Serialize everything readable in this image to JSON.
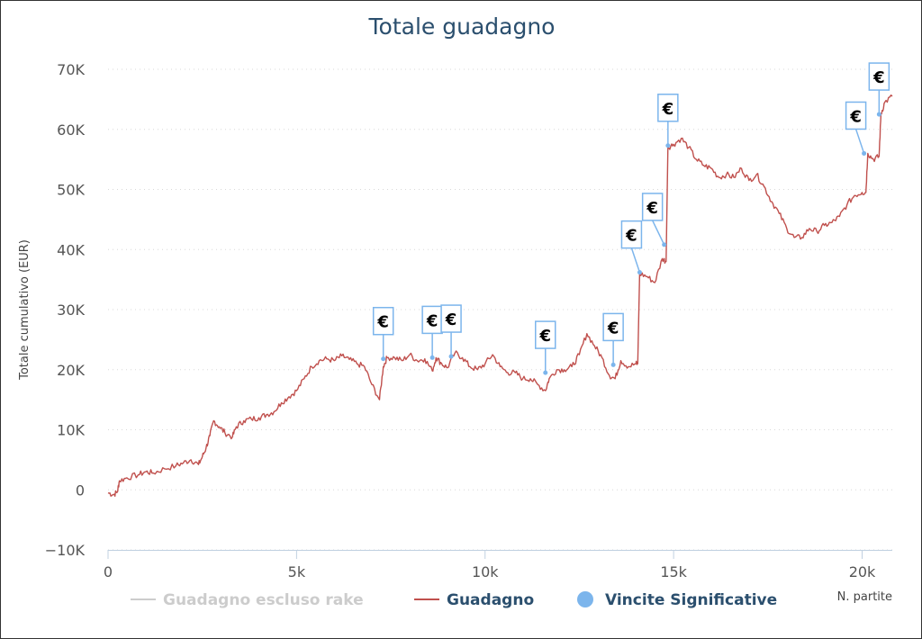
{
  "chart_data": {
    "type": "line",
    "title": "Totale guadagno",
    "xlabel": "N. partite",
    "ylabel": "Totale cumulativo (EUR)",
    "xlim": [
      0,
      20800
    ],
    "ylim": [
      -10000,
      70000
    ],
    "x_ticks": [
      0,
      5000,
      10000,
      15000,
      20000
    ],
    "x_tick_labels": [
      "0",
      "5k",
      "10k",
      "15k",
      "20k"
    ],
    "y_ticks": [
      -10000,
      0,
      10000,
      20000,
      30000,
      40000,
      50000,
      60000,
      70000
    ],
    "y_tick_labels": [
      "−10K",
      "0",
      "10K",
      "20K",
      "30K",
      "40K",
      "50K",
      "60K",
      "70K"
    ],
    "grid": true,
    "legend_position": "bottom",
    "colors": {
      "title": "#2b4f6e",
      "guadagno": "#c0504d",
      "escluso_rake": "#cccccc",
      "vincite": "#7cb5ec",
      "legend_active_text": "#2b4f6e",
      "legend_hidden_text": "#cccccc"
    },
    "series": [
      {
        "name": "Guadagno escluso rake",
        "hidden": true,
        "points": []
      },
      {
        "name": "Guadagno",
        "points": [
          [
            0,
            -500
          ],
          [
            150,
            -800
          ],
          [
            250,
            -300
          ],
          [
            300,
            1500
          ],
          [
            500,
            2000
          ],
          [
            800,
            2500
          ],
          [
            1000,
            3000
          ],
          [
            1200,
            2800
          ],
          [
            1500,
            3500
          ],
          [
            1800,
            4000
          ],
          [
            2000,
            4500
          ],
          [
            2200,
            5000
          ],
          [
            2400,
            4200
          ],
          [
            2500,
            5500
          ],
          [
            2600,
            7000
          ],
          [
            2700,
            9000
          ],
          [
            2800,
            11500
          ],
          [
            2950,
            10500
          ],
          [
            3100,
            9500
          ],
          [
            3300,
            8800
          ],
          [
            3400,
            10500
          ],
          [
            3600,
            11500
          ],
          [
            3800,
            11800
          ],
          [
            4000,
            12000
          ],
          [
            4200,
            12500
          ],
          [
            4400,
            13000
          ],
          [
            4600,
            14500
          ],
          [
            4800,
            15500
          ],
          [
            5000,
            16500
          ],
          [
            5200,
            18500
          ],
          [
            5400,
            20500
          ],
          [
            5600,
            21500
          ],
          [
            5800,
            21800
          ],
          [
            6000,
            21500
          ],
          [
            6200,
            22300
          ],
          [
            6400,
            21700
          ],
          [
            6600,
            21000
          ],
          [
            6800,
            20500
          ],
          [
            7000,
            17500
          ],
          [
            7200,
            15000
          ],
          [
            7300,
            20500
          ],
          [
            7400,
            22000
          ],
          [
            7600,
            22000
          ],
          [
            7800,
            21500
          ],
          [
            8000,
            22500
          ],
          [
            8200,
            21500
          ],
          [
            8400,
            21800
          ],
          [
            8600,
            19800
          ],
          [
            8700,
            22000
          ],
          [
            8850,
            21000
          ],
          [
            9000,
            20300
          ],
          [
            9200,
            22800
          ],
          [
            9400,
            22000
          ],
          [
            9600,
            20500
          ],
          [
            9800,
            20000
          ],
          [
            10000,
            21000
          ],
          [
            10200,
            22500
          ],
          [
            10400,
            20500
          ],
          [
            10600,
            19500
          ],
          [
            10800,
            19500
          ],
          [
            11000,
            18500
          ],
          [
            11200,
            18500
          ],
          [
            11400,
            17500
          ],
          [
            11600,
            16500
          ],
          [
            11700,
            18500
          ],
          [
            11900,
            20000
          ],
          [
            12100,
            20000
          ],
          [
            12300,
            20500
          ],
          [
            12500,
            22500
          ],
          [
            12700,
            26000
          ],
          [
            12900,
            24000
          ],
          [
            13100,
            22000
          ],
          [
            13300,
            19000
          ],
          [
            13450,
            18500
          ],
          [
            13600,
            21500
          ],
          [
            13800,
            20500
          ],
          [
            14000,
            21000
          ],
          [
            14050,
            21000
          ],
          [
            14100,
            36000
          ],
          [
            14300,
            35500
          ],
          [
            14500,
            34500
          ],
          [
            14700,
            38500
          ],
          [
            14800,
            38000
          ],
          [
            14850,
            57000
          ],
          [
            15000,
            57500
          ],
          [
            15200,
            58500
          ],
          [
            15400,
            57000
          ],
          [
            15600,
            55000
          ],
          [
            15800,
            54000
          ],
          [
            16000,
            53500
          ],
          [
            16200,
            52000
          ],
          [
            16400,
            52500
          ],
          [
            16600,
            52000
          ],
          [
            16800,
            53500
          ],
          [
            17000,
            51500
          ],
          [
            17200,
            52500
          ],
          [
            17400,
            50500
          ],
          [
            17600,
            48000
          ],
          [
            17800,
            46000
          ],
          [
            18000,
            43500
          ],
          [
            18200,
            42000
          ],
          [
            18400,
            42000
          ],
          [
            18600,
            43500
          ],
          [
            18800,
            43000
          ],
          [
            19000,
            44000
          ],
          [
            19200,
            44500
          ],
          [
            19400,
            45500
          ],
          [
            19600,
            47500
          ],
          [
            19800,
            49000
          ],
          [
            20000,
            49500
          ],
          [
            20100,
            49500
          ],
          [
            20150,
            56000
          ],
          [
            20300,
            55000
          ],
          [
            20450,
            55500
          ],
          [
            20500,
            62500
          ],
          [
            20600,
            64500
          ],
          [
            20800,
            65500
          ]
        ]
      }
    ],
    "annotations": {
      "name": "Vincite Significative",
      "label": "€",
      "points": [
        {
          "x": 7300,
          "y": 21800
        },
        {
          "x": 8600,
          "y": 22000
        },
        {
          "x": 9100,
          "y": 22200
        },
        {
          "x": 11600,
          "y": 19500
        },
        {
          "x": 13400,
          "y": 20800
        },
        {
          "x": 14100,
          "y": 36200
        },
        {
          "x": 14750,
          "y": 40800
        },
        {
          "x": 14850,
          "y": 57300
        },
        {
          "x": 20050,
          "y": 56000
        },
        {
          "x": 20450,
          "y": 62500
        }
      ]
    }
  }
}
